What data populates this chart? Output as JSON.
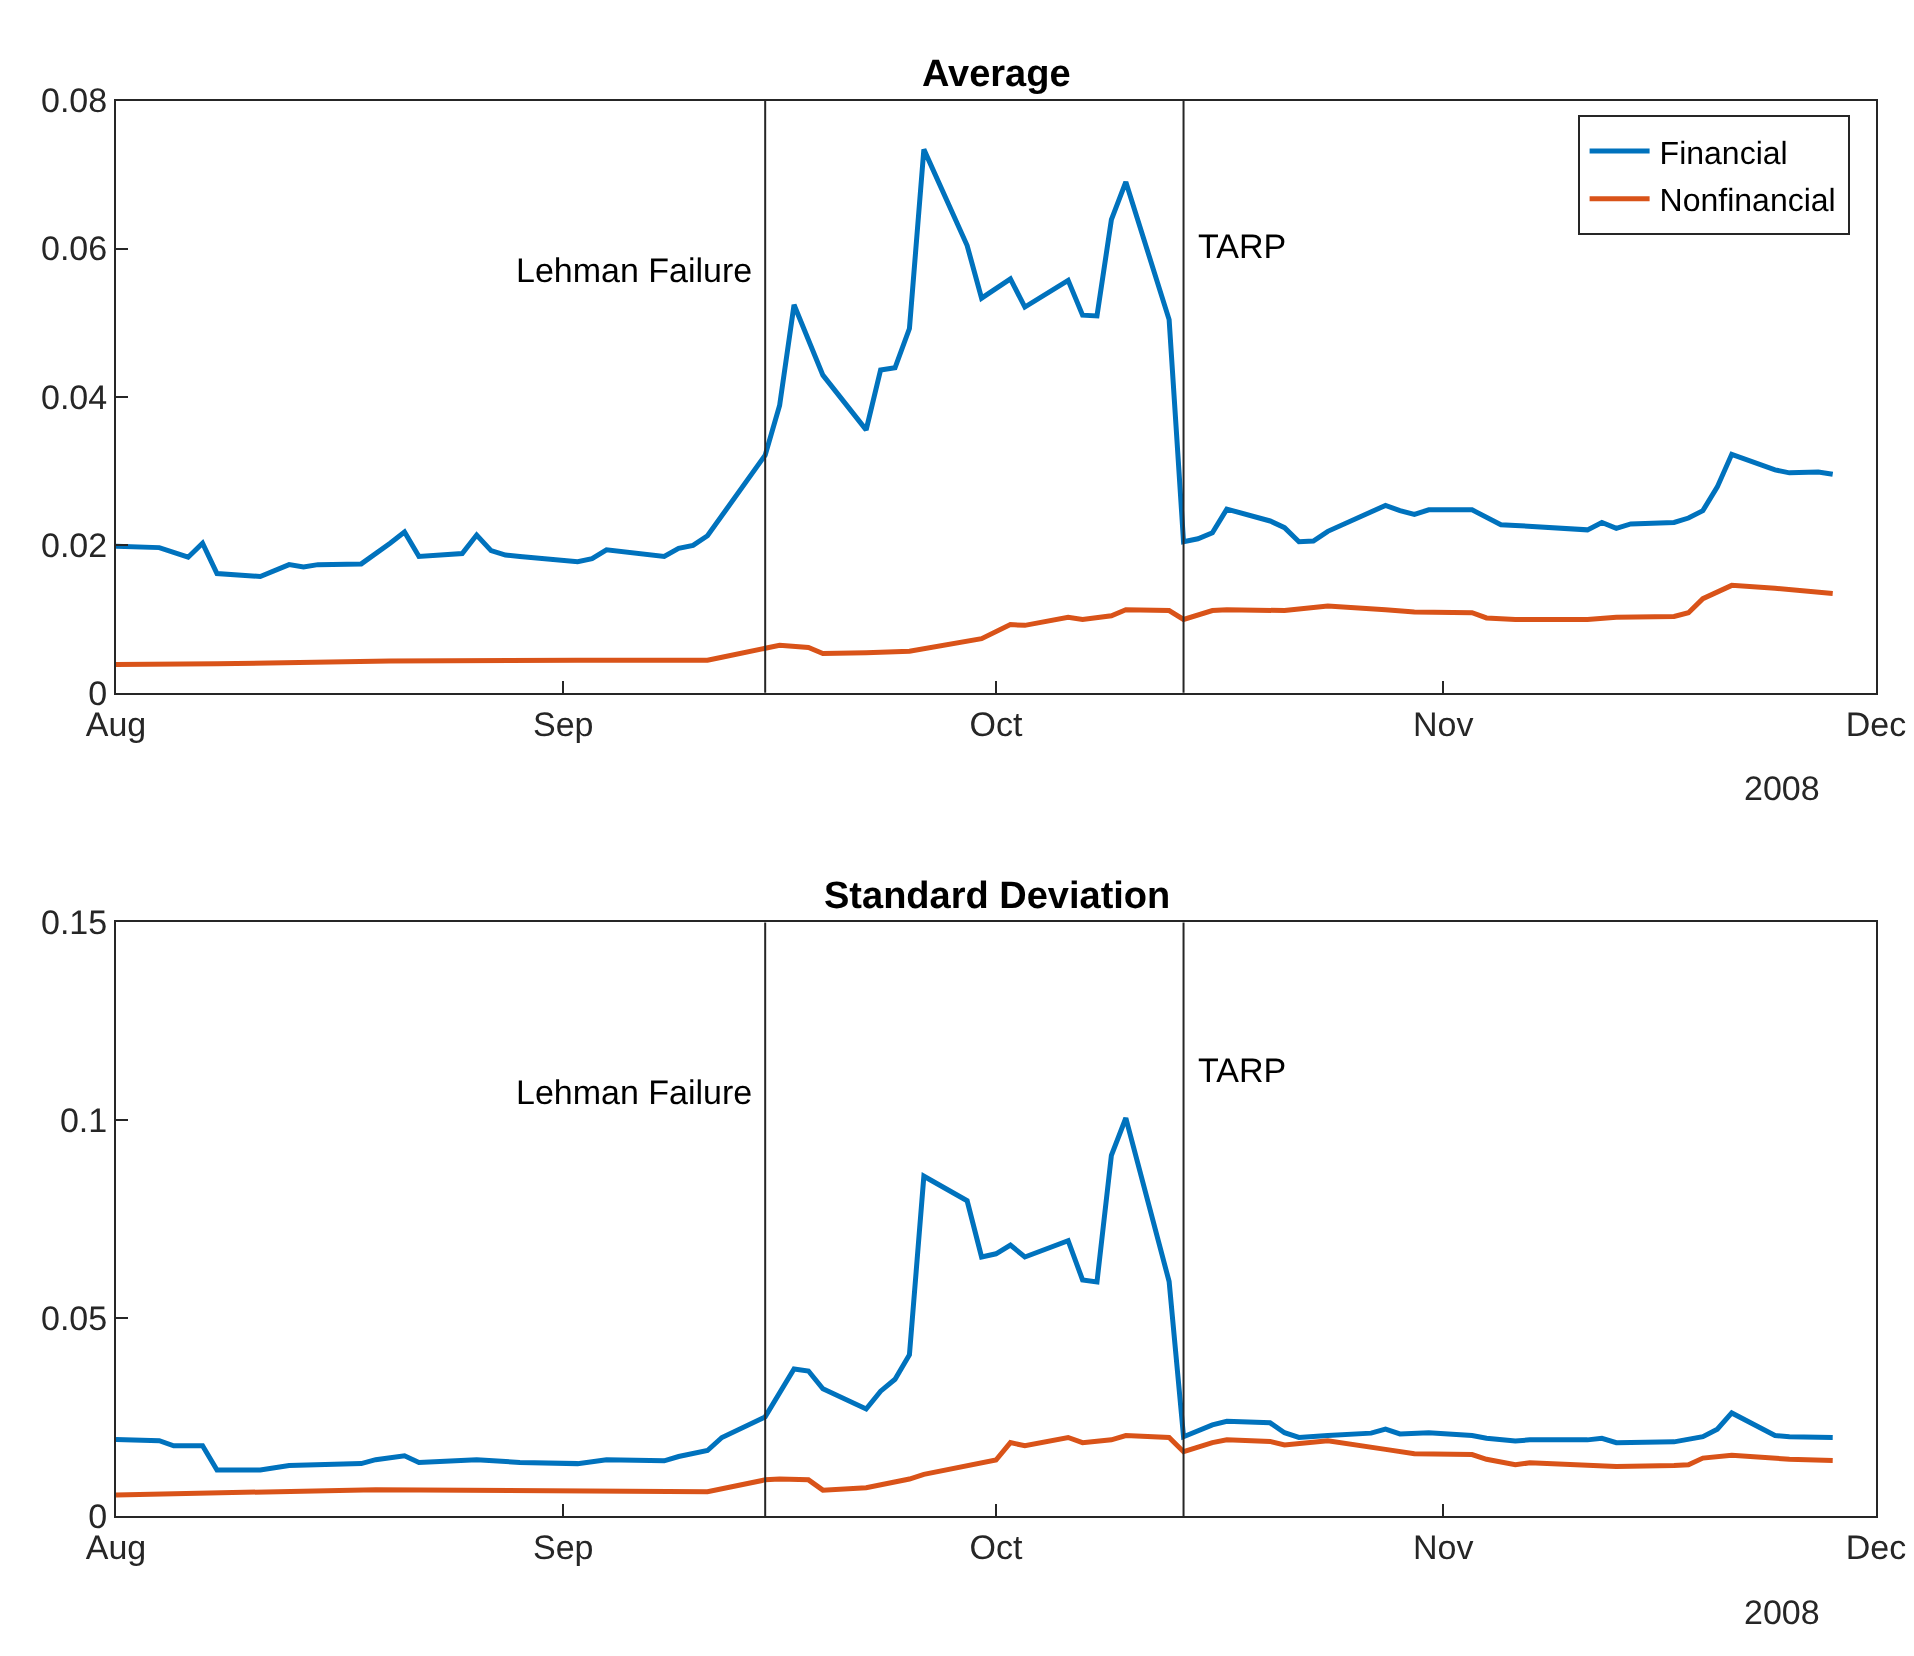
{
  "chart_data": [
    {
      "type": "line",
      "title": "Average",
      "xlim": [
        "2008-08-01",
        "2008-12-01"
      ],
      "xticks": [
        {
          "value": "2008-08-01",
          "label": "Aug"
        },
        {
          "value": "2008-09-01",
          "label": "Sep"
        },
        {
          "value": "2008-10-01",
          "label": "Oct"
        },
        {
          "value": "2008-11-01",
          "label": "Nov"
        },
        {
          "value": "2008-12-01",
          "label": "Dec"
        }
      ],
      "ylim": [
        0,
        0.08
      ],
      "yticks": [
        0,
        0.02,
        0.04,
        0.06,
        0.08
      ],
      "legend": "top right",
      "annotations": [
        "2008"
      ],
      "ref_lines": [
        {
          "axis": "x",
          "value": "2008-09-15",
          "label": "Lehman Failure",
          "color": "#262626"
        },
        {
          "axis": "x",
          "value": "2008-10-14",
          "label": "TARP",
          "color": "#262626"
        }
      ],
      "series": [
        {
          "name": "Financial",
          "color": "#0072bd",
          "x": [
            "2008-08-01",
            "2008-08-04",
            "2008-08-06",
            "2008-08-07",
            "2008-08-08",
            "2008-08-11",
            "2008-08-13",
            "2008-08-14",
            "2008-08-15",
            "2008-08-18",
            "2008-08-20",
            "2008-08-21",
            "2008-08-22",
            "2008-08-25",
            "2008-08-26",
            "2008-08-27",
            "2008-08-28",
            "2008-08-29",
            "2008-09-02",
            "2008-09-03",
            "2008-09-04",
            "2008-09-08",
            "2008-09-09",
            "2008-09-10",
            "2008-09-11",
            "2008-09-15",
            "2008-09-16",
            "2008-09-17",
            "2008-09-19",
            "2008-09-22",
            "2008-09-23",
            "2008-09-24",
            "2008-09-25",
            "2008-09-26",
            "2008-09-29",
            "2008-09-30",
            "2008-10-02",
            "2008-10-03",
            "2008-10-06",
            "2008-10-07",
            "2008-10-08",
            "2008-10-09",
            "2008-10-10",
            "2008-10-13",
            "2008-10-14",
            "2008-10-15",
            "2008-10-16",
            "2008-10-17",
            "2008-10-20",
            "2008-10-21",
            "2008-10-22",
            "2008-10-23",
            "2008-10-24",
            "2008-10-28",
            "2008-10-29",
            "2008-10-30",
            "2008-10-31",
            "2008-11-03",
            "2008-11-05",
            "2008-11-06",
            "2008-11-11",
            "2008-11-12",
            "2008-11-13",
            "2008-11-14",
            "2008-11-17",
            "2008-11-18",
            "2008-11-19",
            "2008-11-20",
            "2008-11-21",
            "2008-11-24",
            "2008-11-25",
            "2008-11-27",
            "2008-11-28"
          ],
          "values": [
            0.0198,
            0.0196,
            0.0183,
            0.0202,
            0.0161,
            0.0157,
            0.0173,
            0.017,
            0.0173,
            0.0174,
            0.0202,
            0.0217,
            0.0184,
            0.0188,
            0.0213,
            0.0192,
            0.0186,
            0.0184,
            0.0177,
            0.0181,
            0.0193,
            0.0184,
            0.0195,
            0.0199,
            0.0212,
            0.0321,
            0.0388,
            0.0524,
            0.0429,
            0.0355,
            0.0436,
            0.0439,
            0.0492,
            0.0734,
            0.0604,
            0.0533,
            0.0559,
            0.0521,
            0.0557,
            0.051,
            0.0509,
            0.0639,
            0.069,
            0.0504,
            0.0204,
            0.0208,
            0.0216,
            0.0248,
            0.0232,
            0.0223,
            0.0204,
            0.0205,
            0.0218,
            0.0253,
            0.0246,
            0.0241,
            0.0247,
            0.0247,
            0.0227,
            0.0226,
            0.022,
            0.023,
            0.0222,
            0.0228,
            0.023,
            0.0236,
            0.0246,
            0.0278,
            0.0322,
            0.0301,
            0.0297,
            0.0298,
            0.0295
          ]
        },
        {
          "name": "Nonfinancial",
          "color": "#d95319",
          "x": [
            "2008-08-01",
            "2008-08-08",
            "2008-08-20",
            "2008-09-02",
            "2008-09-11",
            "2008-09-12",
            "2008-09-15",
            "2008-09-16",
            "2008-09-18",
            "2008-09-19",
            "2008-09-22",
            "2008-09-25",
            "2008-09-30",
            "2008-10-02",
            "2008-10-03",
            "2008-10-06",
            "2008-10-07",
            "2008-10-09",
            "2008-10-10",
            "2008-10-13",
            "2008-10-14",
            "2008-10-16",
            "2008-10-17",
            "2008-10-21",
            "2008-10-24",
            "2008-10-28",
            "2008-10-30",
            "2008-11-03",
            "2008-11-04",
            "2008-11-06",
            "2008-11-11",
            "2008-11-13",
            "2008-11-17",
            "2008-11-18",
            "2008-11-19",
            "2008-11-21",
            "2008-11-24",
            "2008-11-28"
          ],
          "values": [
            0.0038,
            0.0039,
            0.0043,
            0.0044,
            0.0044,
            0.0048,
            0.006,
            0.0064,
            0.0061,
            0.0053,
            0.0054,
            0.0056,
            0.0073,
            0.0092,
            0.0091,
            0.0102,
            0.0099,
            0.0104,
            0.0112,
            0.0111,
            0.0099,
            0.0111,
            0.0112,
            0.0111,
            0.0117,
            0.0112,
            0.0109,
            0.0108,
            0.0101,
            0.0099,
            0.0099,
            0.0102,
            0.0103,
            0.0108,
            0.0127,
            0.0145,
            0.0141,
            0.0134
          ]
        }
      ]
    },
    {
      "type": "line",
      "title": "Standard Deviation",
      "xlim": [
        "2008-08-01",
        "2008-12-01"
      ],
      "xticks": [
        {
          "value": "2008-08-01",
          "label": "Aug"
        },
        {
          "value": "2008-09-01",
          "label": "Sep"
        },
        {
          "value": "2008-10-01",
          "label": "Oct"
        },
        {
          "value": "2008-11-01",
          "label": "Nov"
        },
        {
          "value": "2008-12-01",
          "label": "Dec"
        }
      ],
      "ylim": [
        0,
        0.15
      ],
      "yticks": [
        0,
        0.05,
        0.1,
        0.15
      ],
      "annotations": [
        "2008"
      ],
      "ref_lines": [
        {
          "axis": "x",
          "value": "2008-09-15",
          "label": "Lehman Failure",
          "color": "#262626"
        },
        {
          "axis": "x",
          "value": "2008-10-14",
          "label": "TARP",
          "color": "#262626"
        }
      ],
      "series": [
        {
          "color": "#0072bd",
          "x": [
            "2008-08-01",
            "2008-08-04",
            "2008-08-05",
            "2008-08-07",
            "2008-08-08",
            "2008-08-11",
            "2008-08-13",
            "2008-08-18",
            "2008-08-19",
            "2008-08-21",
            "2008-08-22",
            "2008-08-26",
            "2008-08-29",
            "2008-09-02",
            "2008-09-04",
            "2008-09-08",
            "2008-09-09",
            "2008-09-11",
            "2008-09-12",
            "2008-09-15",
            "2008-09-17",
            "2008-09-18",
            "2008-09-19",
            "2008-09-22",
            "2008-09-23",
            "2008-09-24",
            "2008-09-25",
            "2008-09-26",
            "2008-09-29",
            "2008-09-30",
            "2008-10-01",
            "2008-10-02",
            "2008-10-03",
            "2008-10-06",
            "2008-10-07",
            "2008-10-08",
            "2008-10-09",
            "2008-10-10",
            "2008-10-13",
            "2008-10-14",
            "2008-10-16",
            "2008-10-17",
            "2008-10-20",
            "2008-10-21",
            "2008-10-22",
            "2008-10-24",
            "2008-10-27",
            "2008-10-28",
            "2008-10-29",
            "2008-10-31",
            "2008-11-03",
            "2008-11-04",
            "2008-11-06",
            "2008-11-07",
            "2008-11-11",
            "2008-11-12",
            "2008-11-13",
            "2008-11-17",
            "2008-11-19",
            "2008-11-20",
            "2008-11-21",
            "2008-11-24",
            "2008-11-25",
            "2008-11-28"
          ],
          "values": [
            0.0194,
            0.0191,
            0.0178,
            0.0178,
            0.0117,
            0.0117,
            0.0128,
            0.0133,
            0.0143,
            0.0153,
            0.0136,
            0.0143,
            0.0136,
            0.0133,
            0.0143,
            0.014,
            0.0151,
            0.0166,
            0.0199,
            0.0251,
            0.0372,
            0.0367,
            0.0322,
            0.0271,
            0.0316,
            0.0346,
            0.0408,
            0.0859,
            0.0797,
            0.0655,
            0.0663,
            0.0685,
            0.0655,
            0.0696,
            0.0597,
            0.0592,
            0.0912,
            0.1006,
            0.0593,
            0.0201,
            0.0231,
            0.024,
            0.0236,
            0.0211,
            0.0199,
            0.0204,
            0.021,
            0.022,
            0.0208,
            0.0211,
            0.0204,
            0.0197,
            0.019,
            0.0193,
            0.0193,
            0.0197,
            0.0186,
            0.0188,
            0.0201,
            0.022,
            0.0261,
            0.0204,
            0.0201,
            0.0199
          ]
        },
        {
          "color": "#d95319",
          "x": [
            "2008-08-01",
            "2008-08-19",
            "2008-09-11",
            "2008-09-15",
            "2008-09-16",
            "2008-09-18",
            "2008-09-19",
            "2008-09-22",
            "2008-09-25",
            "2008-09-26",
            "2008-10-01",
            "2008-10-02",
            "2008-10-03",
            "2008-10-06",
            "2008-10-07",
            "2008-10-09",
            "2008-10-10",
            "2008-10-13",
            "2008-10-14",
            "2008-10-16",
            "2008-10-17",
            "2008-10-20",
            "2008-10-21",
            "2008-10-24",
            "2008-10-28",
            "2008-10-30",
            "2008-11-03",
            "2008-11-04",
            "2008-11-06",
            "2008-11-07",
            "2008-11-13",
            "2008-11-17",
            "2008-11-18",
            "2008-11-19",
            "2008-11-21",
            "2008-11-25",
            "2008-11-28"
          ],
          "values": [
            0.0054,
            0.0067,
            0.0062,
            0.0092,
            0.0094,
            0.0092,
            0.0066,
            0.0072,
            0.0094,
            0.0106,
            0.0142,
            0.0186,
            0.0178,
            0.0199,
            0.0186,
            0.0193,
            0.0204,
            0.0199,
            0.0163,
            0.0186,
            0.0193,
            0.0189,
            0.018,
            0.0191,
            0.0169,
            0.0158,
            0.0156,
            0.0144,
            0.013,
            0.0135,
            0.0126,
            0.0128,
            0.013,
            0.0147,
            0.0154,
            0.0144,
            0.0141
          ]
        }
      ]
    }
  ]
}
